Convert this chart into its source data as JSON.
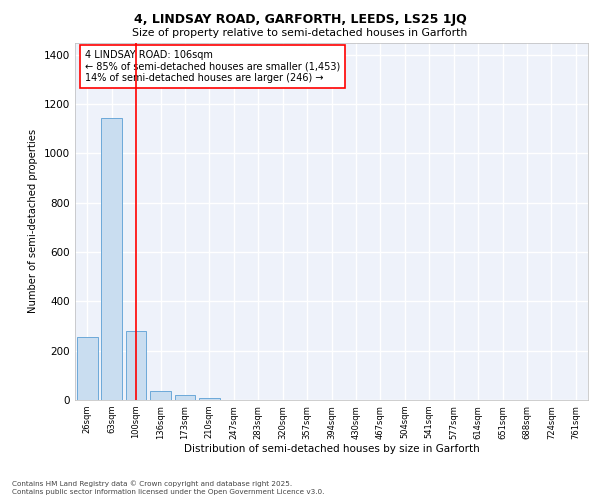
{
  "title_line1": "4, LINDSAY ROAD, GARFORTH, LEEDS, LS25 1JQ",
  "title_line2": "Size of property relative to semi-detached houses in Garforth",
  "xlabel": "Distribution of semi-detached houses by size in Garforth",
  "ylabel": "Number of semi-detached properties",
  "categories": [
    "26sqm",
    "63sqm",
    "100sqm",
    "136sqm",
    "173sqm",
    "210sqm",
    "247sqm",
    "283sqm",
    "320sqm",
    "357sqm",
    "394sqm",
    "430sqm",
    "467sqm",
    "504sqm",
    "541sqm",
    "577sqm",
    "614sqm",
    "651sqm",
    "688sqm",
    "724sqm",
    "761sqm"
  ],
  "values": [
    255,
    1145,
    280,
    35,
    20,
    10,
    0,
    0,
    0,
    0,
    0,
    0,
    0,
    0,
    0,
    0,
    0,
    0,
    0,
    0,
    0
  ],
  "bar_color": "#c9ddf0",
  "bar_edgecolor": "#5a9fd4",
  "redline_x": 2.0,
  "annotation_text_line1": "4 LINDSAY ROAD: 106sqm",
  "annotation_text_line2": "← 85% of semi-detached houses are smaller (1,453)",
  "annotation_text_line3": "14% of semi-detached houses are larger (246) →",
  "background_color": "#eef2fa",
  "grid_color": "white",
  "footer_line1": "Contains HM Land Registry data © Crown copyright and database right 2025.",
  "footer_line2": "Contains public sector information licensed under the Open Government Licence v3.0.",
  "ylim": [
    0,
    1450
  ],
  "yticks": [
    0,
    200,
    400,
    600,
    800,
    1000,
    1200,
    1400
  ]
}
